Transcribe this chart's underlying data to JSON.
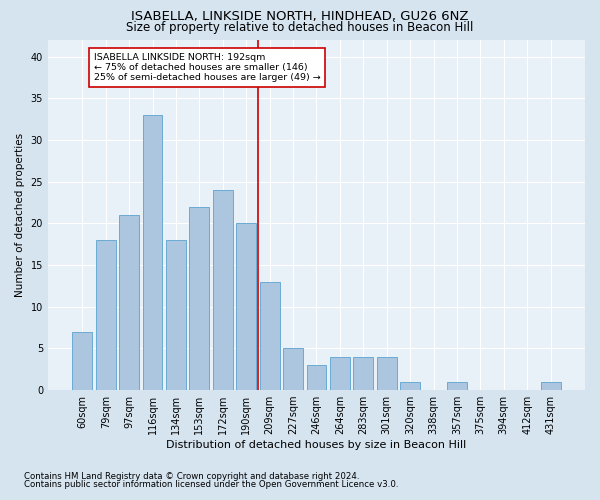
{
  "title1": "ISABELLA, LINKSIDE NORTH, HINDHEAD, GU26 6NZ",
  "title2": "Size of property relative to detached houses in Beacon Hill",
  "xlabel": "Distribution of detached houses by size in Beacon Hill",
  "ylabel": "Number of detached properties",
  "categories": [
    "60sqm",
    "79sqm",
    "97sqm",
    "116sqm",
    "134sqm",
    "153sqm",
    "172sqm",
    "190sqm",
    "209sqm",
    "227sqm",
    "246sqm",
    "264sqm",
    "283sqm",
    "301sqm",
    "320sqm",
    "338sqm",
    "357sqm",
    "375sqm",
    "394sqm",
    "412sqm",
    "431sqm"
  ],
  "values": [
    7,
    18,
    21,
    33,
    18,
    22,
    24,
    20,
    13,
    5,
    3,
    4,
    4,
    4,
    1,
    0,
    1,
    0,
    0,
    0,
    1
  ],
  "bar_color": "#adc6e0",
  "bar_edge_color": "#6aaad4",
  "vline_color": "#cc0000",
  "annotation_box_text": "ISABELLA LINKSIDE NORTH: 192sqm\n← 75% of detached houses are smaller (146)\n25% of semi-detached houses are larger (49) →",
  "annotation_box_color": "#cc0000",
  "ylim": [
    0,
    42
  ],
  "yticks": [
    0,
    5,
    10,
    15,
    20,
    25,
    30,
    35,
    40
  ],
  "footnote1": "Contains HM Land Registry data © Crown copyright and database right 2024.",
  "footnote2": "Contains public sector information licensed under the Open Government Licence v3.0.",
  "bg_color": "#d6e4f0",
  "plot_bg_color": "#e8f0f8",
  "title1_fontsize": 9.5,
  "title2_fontsize": 8.5,
  "xlabel_fontsize": 8,
  "ylabel_fontsize": 7.5,
  "tick_fontsize": 7,
  "footnote_fontsize": 6.2,
  "vline_index": 7.5
}
